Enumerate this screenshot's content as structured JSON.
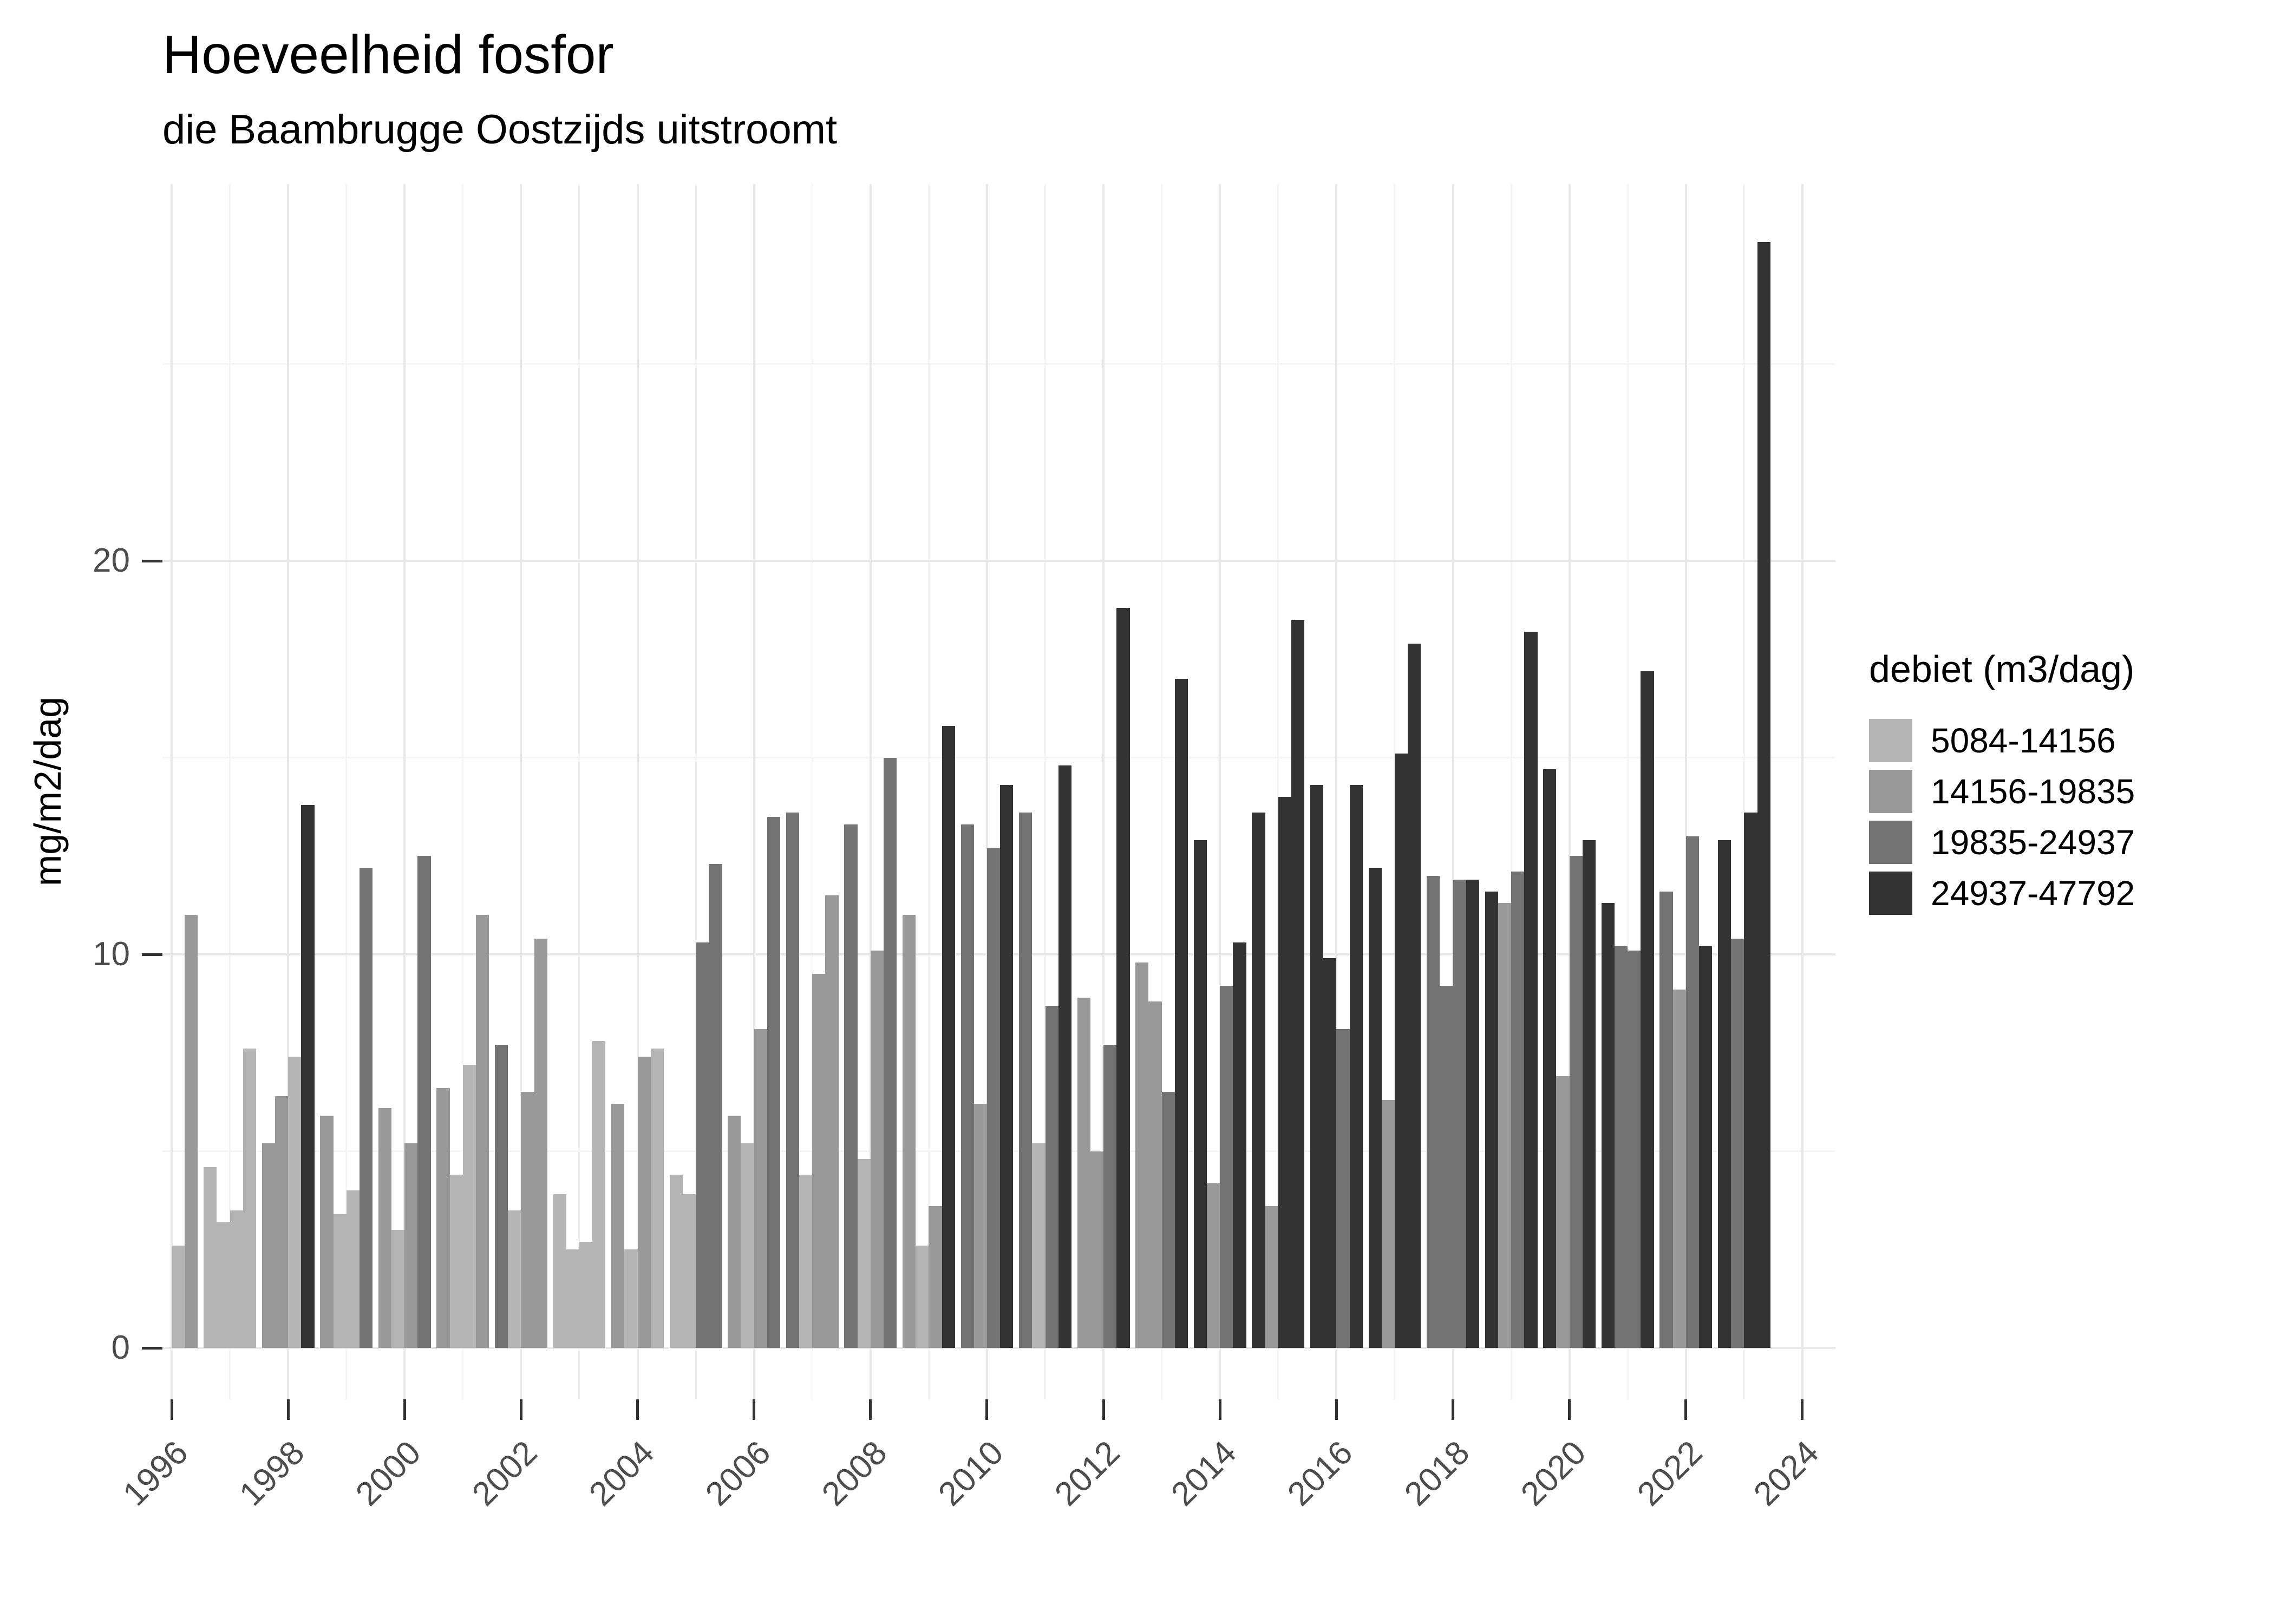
{
  "chart_data": {
    "type": "bar",
    "title": "Hoeveelheid fosfor",
    "subtitle": "die Baambrugge Oostzijds uitstroomt",
    "ylabel": "mg/m2/dag",
    "xlabel": "",
    "grid": true,
    "ylim": [
      0,
      29.6
    ],
    "y_major_ticks": [
      0,
      10,
      20
    ],
    "y_minor_gridlines": [
      5,
      15,
      25
    ],
    "x_major_ticks": [
      1996,
      1998,
      2000,
      2002,
      2004,
      2006,
      2008,
      2010,
      2012,
      2014,
      2016,
      2018,
      2020,
      2022,
      2024
    ],
    "x_minor_gridlines": [
      1997,
      1999,
      2001,
      2003,
      2005,
      2007,
      2009,
      2011,
      2013,
      2015,
      2017,
      2019,
      2021,
      2023
    ],
    "legend_position": "right",
    "legend_title": "debiet (m3/dag)",
    "legend_items": [
      {
        "label": "5084-14156",
        "color": "#b4b4b4"
      },
      {
        "label": "14156-19835",
        "color": "#999999"
      },
      {
        "label": "19835-24937",
        "color": "#737373"
      },
      {
        "label": "24937-47792",
        "color": "#333333"
      }
    ],
    "bars": [
      {
        "year": 1996,
        "quarter": 3,
        "value": 2.6,
        "debiet": "5084-14156"
      },
      {
        "year": 1996,
        "quarter": 4,
        "value": 11.0,
        "debiet": "14156-19835"
      },
      {
        "year": 1997,
        "quarter": 1,
        "value": 4.6,
        "debiet": "5084-14156"
      },
      {
        "year": 1997,
        "quarter": 2,
        "value": 3.2,
        "debiet": "5084-14156"
      },
      {
        "year": 1997,
        "quarter": 3,
        "value": 3.5,
        "debiet": "5084-14156"
      },
      {
        "year": 1997,
        "quarter": 4,
        "value": 7.6,
        "debiet": "5084-14156"
      },
      {
        "year": 1998,
        "quarter": 1,
        "value": 5.2,
        "debiet": "14156-19835"
      },
      {
        "year": 1998,
        "quarter": 2,
        "value": 6.4,
        "debiet": "14156-19835"
      },
      {
        "year": 1998,
        "quarter": 3,
        "value": 7.4,
        "debiet": "5084-14156"
      },
      {
        "year": 1998,
        "quarter": 4,
        "value": 13.8,
        "debiet": "24937-47792"
      },
      {
        "year": 1999,
        "quarter": 1,
        "value": 5.9,
        "debiet": "14156-19835"
      },
      {
        "year": 1999,
        "quarter": 2,
        "value": 3.4,
        "debiet": "5084-14156"
      },
      {
        "year": 1999,
        "quarter": 3,
        "value": 4.0,
        "debiet": "5084-14156"
      },
      {
        "year": 1999,
        "quarter": 4,
        "value": 12.2,
        "debiet": "19835-24937"
      },
      {
        "year": 2000,
        "quarter": 1,
        "value": 6.1,
        "debiet": "14156-19835"
      },
      {
        "year": 2000,
        "quarter": 2,
        "value": 3.0,
        "debiet": "5084-14156"
      },
      {
        "year": 2000,
        "quarter": 3,
        "value": 5.2,
        "debiet": "14156-19835"
      },
      {
        "year": 2000,
        "quarter": 4,
        "value": 12.5,
        "debiet": "19835-24937"
      },
      {
        "year": 2001,
        "quarter": 1,
        "value": 6.6,
        "debiet": "14156-19835"
      },
      {
        "year": 2001,
        "quarter": 2,
        "value": 4.4,
        "debiet": "5084-14156"
      },
      {
        "year": 2001,
        "quarter": 3,
        "value": 7.2,
        "debiet": "5084-14156"
      },
      {
        "year": 2001,
        "quarter": 4,
        "value": 11.0,
        "debiet": "14156-19835"
      },
      {
        "year": 2002,
        "quarter": 1,
        "value": 7.7,
        "debiet": "19835-24937"
      },
      {
        "year": 2002,
        "quarter": 2,
        "value": 3.5,
        "debiet": "5084-14156"
      },
      {
        "year": 2002,
        "quarter": 3,
        "value": 6.5,
        "debiet": "14156-19835"
      },
      {
        "year": 2002,
        "quarter": 4,
        "value": 10.4,
        "debiet": "14156-19835"
      },
      {
        "year": 2003,
        "quarter": 1,
        "value": 3.9,
        "debiet": "5084-14156"
      },
      {
        "year": 2003,
        "quarter": 2,
        "value": 2.5,
        "debiet": "5084-14156"
      },
      {
        "year": 2003,
        "quarter": 3,
        "value": 2.7,
        "debiet": "5084-14156"
      },
      {
        "year": 2003,
        "quarter": 4,
        "value": 7.8,
        "debiet": "5084-14156"
      },
      {
        "year": 2004,
        "quarter": 1,
        "value": 6.2,
        "debiet": "14156-19835"
      },
      {
        "year": 2004,
        "quarter": 2,
        "value": 2.5,
        "debiet": "5084-14156"
      },
      {
        "year": 2004,
        "quarter": 3,
        "value": 7.4,
        "debiet": "14156-19835"
      },
      {
        "year": 2004,
        "quarter": 4,
        "value": 7.6,
        "debiet": "5084-14156"
      },
      {
        "year": 2005,
        "quarter": 1,
        "value": 4.4,
        "debiet": "5084-14156"
      },
      {
        "year": 2005,
        "quarter": 2,
        "value": 3.9,
        "debiet": "5084-14156"
      },
      {
        "year": 2005,
        "quarter": 3,
        "value": 10.3,
        "debiet": "19835-24937"
      },
      {
        "year": 2005,
        "quarter": 4,
        "value": 12.3,
        "debiet": "19835-24937"
      },
      {
        "year": 2006,
        "quarter": 1,
        "value": 5.9,
        "debiet": "14156-19835"
      },
      {
        "year": 2006,
        "quarter": 2,
        "value": 5.2,
        "debiet": "5084-14156"
      },
      {
        "year": 2006,
        "quarter": 3,
        "value": 8.1,
        "debiet": "14156-19835"
      },
      {
        "year": 2006,
        "quarter": 4,
        "value": 13.5,
        "debiet": "19835-24937"
      },
      {
        "year": 2007,
        "quarter": 1,
        "value": 13.6,
        "debiet": "19835-24937"
      },
      {
        "year": 2007,
        "quarter": 2,
        "value": 4.4,
        "debiet": "5084-14156"
      },
      {
        "year": 2007,
        "quarter": 3,
        "value": 9.5,
        "debiet": "14156-19835"
      },
      {
        "year": 2007,
        "quarter": 4,
        "value": 11.5,
        "debiet": "14156-19835"
      },
      {
        "year": 2008,
        "quarter": 1,
        "value": 13.3,
        "debiet": "19835-24937"
      },
      {
        "year": 2008,
        "quarter": 2,
        "value": 4.8,
        "debiet": "5084-14156"
      },
      {
        "year": 2008,
        "quarter": 3,
        "value": 10.1,
        "debiet": "14156-19835"
      },
      {
        "year": 2008,
        "quarter": 4,
        "value": 15.0,
        "debiet": "19835-24937"
      },
      {
        "year": 2009,
        "quarter": 1,
        "value": 11.0,
        "debiet": "14156-19835"
      },
      {
        "year": 2009,
        "quarter": 2,
        "value": 2.6,
        "debiet": "5084-14156"
      },
      {
        "year": 2009,
        "quarter": 3,
        "value": 3.6,
        "debiet": "14156-19835"
      },
      {
        "year": 2009,
        "quarter": 4,
        "value": 15.8,
        "debiet": "24937-47792"
      },
      {
        "year": 2010,
        "quarter": 1,
        "value": 13.3,
        "debiet": "19835-24937"
      },
      {
        "year": 2010,
        "quarter": 2,
        "value": 6.2,
        "debiet": "14156-19835"
      },
      {
        "year": 2010,
        "quarter": 3,
        "value": 12.7,
        "debiet": "19835-24937"
      },
      {
        "year": 2010,
        "quarter": 4,
        "value": 14.3,
        "debiet": "24937-47792"
      },
      {
        "year": 2011,
        "quarter": 1,
        "value": 13.6,
        "debiet": "19835-24937"
      },
      {
        "year": 2011,
        "quarter": 2,
        "value": 5.2,
        "debiet": "5084-14156"
      },
      {
        "year": 2011,
        "quarter": 3,
        "value": 8.7,
        "debiet": "19835-24937"
      },
      {
        "year": 2011,
        "quarter": 4,
        "value": 14.8,
        "debiet": "24937-47792"
      },
      {
        "year": 2012,
        "quarter": 1,
        "value": 8.9,
        "debiet": "14156-19835"
      },
      {
        "year": 2012,
        "quarter": 2,
        "value": 5.0,
        "debiet": "14156-19835"
      },
      {
        "year": 2012,
        "quarter": 3,
        "value": 7.7,
        "debiet": "19835-24937"
      },
      {
        "year": 2012,
        "quarter": 4,
        "value": 18.8,
        "debiet": "24937-47792"
      },
      {
        "year": 2013,
        "quarter": 1,
        "value": 9.8,
        "debiet": "14156-19835"
      },
      {
        "year": 2013,
        "quarter": 2,
        "value": 8.8,
        "debiet": "14156-19835"
      },
      {
        "year": 2013,
        "quarter": 3,
        "value": 6.5,
        "debiet": "19835-24937"
      },
      {
        "year": 2013,
        "quarter": 4,
        "value": 17.0,
        "debiet": "24937-47792"
      },
      {
        "year": 2014,
        "quarter": 1,
        "value": 12.9,
        "debiet": "24937-47792"
      },
      {
        "year": 2014,
        "quarter": 2,
        "value": 4.2,
        "debiet": "14156-19835"
      },
      {
        "year": 2014,
        "quarter": 3,
        "value": 9.2,
        "debiet": "19835-24937"
      },
      {
        "year": 2014,
        "quarter": 4,
        "value": 10.3,
        "debiet": "24937-47792"
      },
      {
        "year": 2015,
        "quarter": 1,
        "value": 13.6,
        "debiet": "24937-47792"
      },
      {
        "year": 2015,
        "quarter": 2,
        "value": 3.6,
        "debiet": "14156-19835"
      },
      {
        "year": 2015,
        "quarter": 3,
        "value": 14.0,
        "debiet": "24937-47792"
      },
      {
        "year": 2015,
        "quarter": 4,
        "value": 18.5,
        "debiet": "24937-47792"
      },
      {
        "year": 2016,
        "quarter": 1,
        "value": 14.3,
        "debiet": "24937-47792"
      },
      {
        "year": 2016,
        "quarter": 2,
        "value": 9.9,
        "debiet": "24937-47792"
      },
      {
        "year": 2016,
        "quarter": 3,
        "value": 8.1,
        "debiet": "19835-24937"
      },
      {
        "year": 2016,
        "quarter": 4,
        "value": 14.3,
        "debiet": "24937-47792"
      },
      {
        "year": 2017,
        "quarter": 1,
        "value": 12.2,
        "debiet": "24937-47792"
      },
      {
        "year": 2017,
        "quarter": 2,
        "value": 6.3,
        "debiet": "14156-19835"
      },
      {
        "year": 2017,
        "quarter": 3,
        "value": 15.1,
        "debiet": "24937-47792"
      },
      {
        "year": 2017,
        "quarter": 4,
        "value": 17.9,
        "debiet": "24937-47792"
      },
      {
        "year": 2018,
        "quarter": 1,
        "value": 12.0,
        "debiet": "19835-24937"
      },
      {
        "year": 2018,
        "quarter": 2,
        "value": 9.2,
        "debiet": "19835-24937"
      },
      {
        "year": 2018,
        "quarter": 3,
        "value": 11.9,
        "debiet": "19835-24937"
      },
      {
        "year": 2018,
        "quarter": 4,
        "value": 11.9,
        "debiet": "24937-47792"
      },
      {
        "year": 2019,
        "quarter": 1,
        "value": 11.6,
        "debiet": "24937-47792"
      },
      {
        "year": 2019,
        "quarter": 2,
        "value": 11.3,
        "debiet": "14156-19835"
      },
      {
        "year": 2019,
        "quarter": 3,
        "value": 12.1,
        "debiet": "19835-24937"
      },
      {
        "year": 2019,
        "quarter": 4,
        "value": 18.2,
        "debiet": "24937-47792"
      },
      {
        "year": 2020,
        "quarter": 1,
        "value": 14.7,
        "debiet": "24937-47792"
      },
      {
        "year": 2020,
        "quarter": 2,
        "value": 6.9,
        "debiet": "14156-19835"
      },
      {
        "year": 2020,
        "quarter": 3,
        "value": 12.5,
        "debiet": "19835-24937"
      },
      {
        "year": 2020,
        "quarter": 4,
        "value": 12.9,
        "debiet": "24937-47792"
      },
      {
        "year": 2021,
        "quarter": 1,
        "value": 11.3,
        "debiet": "24937-47792"
      },
      {
        "year": 2021,
        "quarter": 2,
        "value": 10.2,
        "debiet": "19835-24937"
      },
      {
        "year": 2021,
        "quarter": 3,
        "value": 10.1,
        "debiet": "19835-24937"
      },
      {
        "year": 2021,
        "quarter": 4,
        "value": 17.2,
        "debiet": "24937-47792"
      },
      {
        "year": 2022,
        "quarter": 1,
        "value": 11.6,
        "debiet": "19835-24937"
      },
      {
        "year": 2022,
        "quarter": 2,
        "value": 9.1,
        "debiet": "14156-19835"
      },
      {
        "year": 2022,
        "quarter": 3,
        "value": 13.0,
        "debiet": "19835-24937"
      },
      {
        "year": 2022,
        "quarter": 4,
        "value": 10.2,
        "debiet": "24937-47792"
      },
      {
        "year": 2023,
        "quarter": 1,
        "value": 12.9,
        "debiet": "24937-47792"
      },
      {
        "year": 2023,
        "quarter": 2,
        "value": 10.4,
        "debiet": "19835-24937"
      },
      {
        "year": 2023,
        "quarter": 3,
        "value": 13.6,
        "debiet": "24937-47792"
      },
      {
        "year": 2023,
        "quarter": 4,
        "value": 28.1,
        "debiet": "24937-47792"
      }
    ]
  }
}
